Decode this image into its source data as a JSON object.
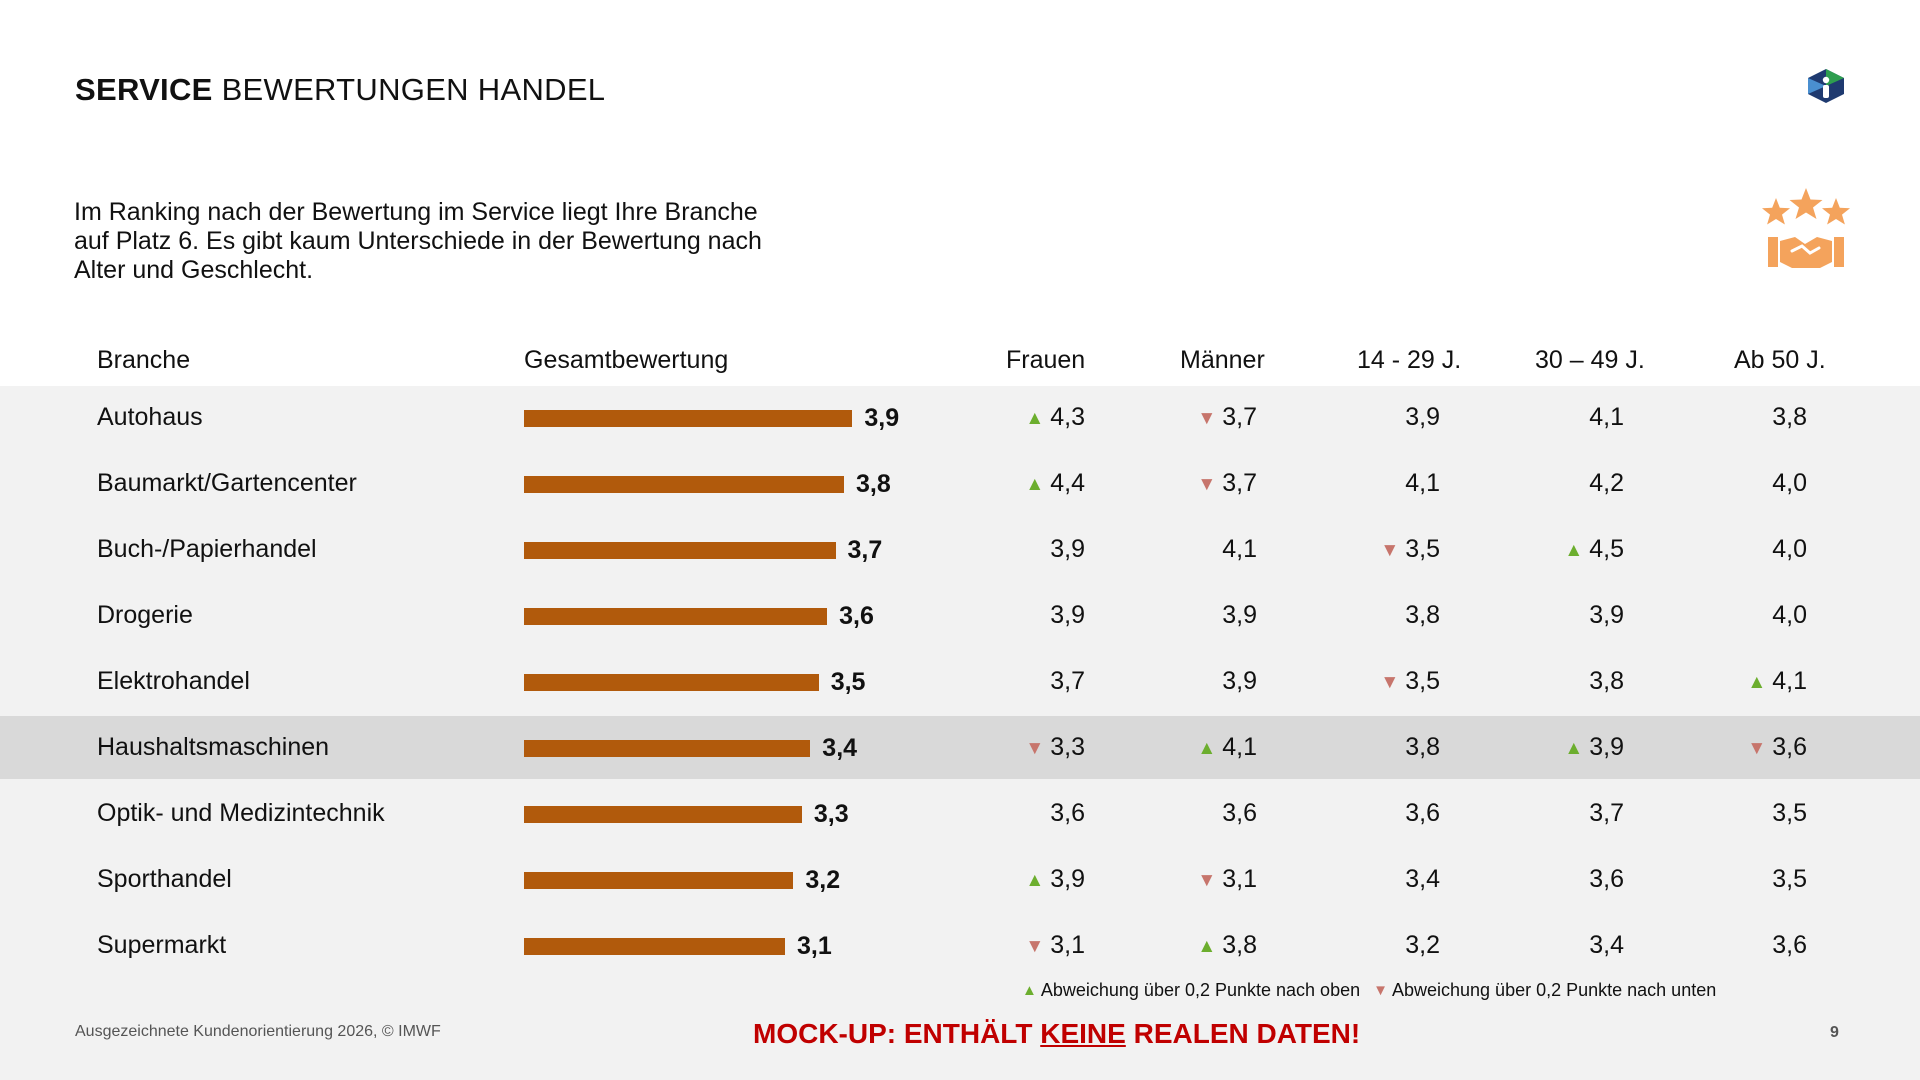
{
  "header": {
    "title_bold": "SERVICE",
    "title_rest": "BEWERTUNGEN HANDEL"
  },
  "intro": {
    "line1": "Im Ranking nach der Bewertung im Service liegt Ihre Branche",
    "line2": "auf Platz 6. Es gibt kaum Unterschiede in der Bewertung nach",
    "line3": "Alter und Geschlecht."
  },
  "icons": {
    "logo": "imwf-logo-icon",
    "service": "stars-handshake-icon"
  },
  "colors": {
    "bar": "#b15a0c",
    "up": "#6cae2e",
    "down": "#c7756c",
    "mockup": "#c00000",
    "highlight_row": "#d9d9d9"
  },
  "chart_data": {
    "type": "table",
    "title": "SERVICE BEWERTUNGEN HANDEL",
    "columns": [
      "Branche",
      "Gesamtbewertung",
      "Frauen",
      "Männer",
      "14 - 29 J.",
      "30 – 49 J.",
      "Ab 50 J."
    ],
    "bar_scale_max": 5,
    "highlight_index": 5,
    "rows": [
      {
        "branche": "Autohaus",
        "gesamt": 3.9,
        "gesamt_label": "3,9",
        "frauen": {
          "v": "4,3",
          "t": "up"
        },
        "maenner": {
          "v": "3,7",
          "t": "down"
        },
        "a14": {
          "v": "3,9",
          "t": ""
        },
        "a30": {
          "v": "4,1",
          "t": ""
        },
        "a50": {
          "v": "3,8",
          "t": ""
        }
      },
      {
        "branche": "Baumarkt/Gartencenter",
        "gesamt": 3.8,
        "gesamt_label": "3,8",
        "frauen": {
          "v": "4,4",
          "t": "up"
        },
        "maenner": {
          "v": "3,7",
          "t": "down"
        },
        "a14": {
          "v": "4,1",
          "t": ""
        },
        "a30": {
          "v": "4,2",
          "t": ""
        },
        "a50": {
          "v": "4,0",
          "t": ""
        }
      },
      {
        "branche": "Buch-/Papierhandel",
        "gesamt": 3.7,
        "gesamt_label": "3,7",
        "frauen": {
          "v": "3,9",
          "t": ""
        },
        "maenner": {
          "v": "4,1",
          "t": ""
        },
        "a14": {
          "v": "3,5",
          "t": "down"
        },
        "a30": {
          "v": "4,5",
          "t": "up"
        },
        "a50": {
          "v": "4,0",
          "t": ""
        }
      },
      {
        "branche": "Drogerie",
        "gesamt": 3.6,
        "gesamt_label": "3,6",
        "frauen": {
          "v": "3,9",
          "t": ""
        },
        "maenner": {
          "v": "3,9",
          "t": ""
        },
        "a14": {
          "v": "3,8",
          "t": ""
        },
        "a30": {
          "v": "3,9",
          "t": ""
        },
        "a50": {
          "v": "4,0",
          "t": ""
        }
      },
      {
        "branche": "Elektrohandel",
        "gesamt": 3.5,
        "gesamt_label": "3,5",
        "frauen": {
          "v": "3,7",
          "t": ""
        },
        "maenner": {
          "v": "3,9",
          "t": ""
        },
        "a14": {
          "v": "3,5",
          "t": "down"
        },
        "a30": {
          "v": "3,8",
          "t": ""
        },
        "a50": {
          "v": "4,1",
          "t": "up"
        }
      },
      {
        "branche": "Haushaltsmaschinen",
        "gesamt": 3.4,
        "gesamt_label": "3,4",
        "frauen": {
          "v": "3,3",
          "t": "down"
        },
        "maenner": {
          "v": "4,1",
          "t": "up"
        },
        "a14": {
          "v": "3,8",
          "t": ""
        },
        "a30": {
          "v": "3,9",
          "t": "up"
        },
        "a50": {
          "v": "3,6",
          "t": "down"
        }
      },
      {
        "branche": "Optik- und Medizintechnik",
        "gesamt": 3.3,
        "gesamt_label": "3,3",
        "frauen": {
          "v": "3,6",
          "t": ""
        },
        "maenner": {
          "v": "3,6",
          "t": ""
        },
        "a14": {
          "v": "3,6",
          "t": ""
        },
        "a30": {
          "v": "3,7",
          "t": ""
        },
        "a50": {
          "v": "3,5",
          "t": ""
        }
      },
      {
        "branche": "Sporthandel",
        "gesamt": 3.2,
        "gesamt_label": "3,2",
        "frauen": {
          "v": "3,9",
          "t": "up"
        },
        "maenner": {
          "v": "3,1",
          "t": "down"
        },
        "a14": {
          "v": "3,4",
          "t": ""
        },
        "a30": {
          "v": "3,6",
          "t": ""
        },
        "a50": {
          "v": "3,5",
          "t": ""
        }
      },
      {
        "branche": "Supermarkt",
        "gesamt": 3.1,
        "gesamt_label": "3,1",
        "frauen": {
          "v": "3,1",
          "t": "down"
        },
        "maenner": {
          "v": "3,8",
          "t": "up"
        },
        "a14": {
          "v": "3,2",
          "t": ""
        },
        "a30": {
          "v": "3,4",
          "t": ""
        },
        "a50": {
          "v": "3,6",
          "t": ""
        }
      }
    ],
    "legend": {
      "up": "Abweichung über 0,2 Punkte nach oben",
      "down": "Abweichung über 0,2 Punkte nach unten"
    }
  },
  "footer": {
    "source": "Ausgezeichnete Kundenorientierung 2026, © IMWF",
    "mockup_before": "MOCK-UP: ENTHÄLT",
    "mockup_underlined": "KEINE",
    "mockup_after": "REALEN DATEN!",
    "page_number": "9"
  }
}
